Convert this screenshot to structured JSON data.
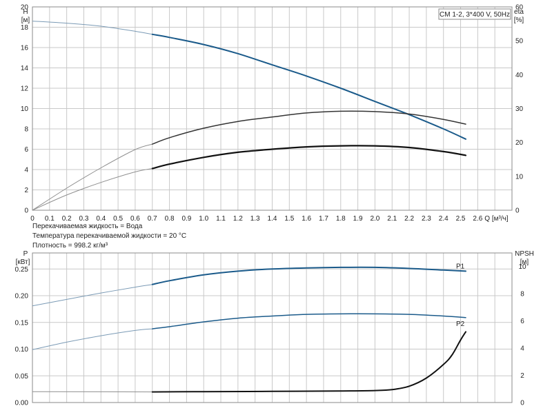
{
  "colors": {
    "grid": "#c8c8c8",
    "frame": "#8a8a8a",
    "head_curve": "#1a5a8a",
    "pump_curve": "#1a5a8a",
    "eta_curve": "#333333",
    "black_curve": "#111111",
    "thin_curve": "#8f8f8f"
  },
  "info": {
    "fluid": "Перекачиваемая жидкость = Вода",
    "temperature": "Температура перекачиваемой жидкости = 20 °C",
    "density": "Плотность = 998.2 кг/м³"
  },
  "chart_data": [
    {
      "type": "line",
      "title": "CM 1-2, 3*400 V, 50Hz",
      "x_axis": {
        "label": "Q [м³/ч]",
        "range": [
          0,
          2.8
        ],
        "ticks": [
          "0",
          "0.1",
          "0.2",
          "0.3",
          "0.4",
          "0.5",
          "0.6",
          "0.7",
          "0.8",
          "0.9",
          "1.0",
          "1.1",
          "1.2",
          "1.3",
          "1.4",
          "1.5",
          "1.6",
          "1.7",
          "1.8",
          "1.9",
          "2.0",
          "2.1",
          "2.2",
          "2.3",
          "2.4",
          "2.5",
          "2.6"
        ]
      },
      "y_axis_left": {
        "label": "H",
        "unit": "[м]",
        "range": [
          0,
          20
        ],
        "ticks": [
          "0",
          "2",
          "4",
          "6",
          "8",
          "10",
          "12",
          "14",
          "16",
          "18",
          "20"
        ]
      },
      "y_axis_right": {
        "label": "eta",
        "unit": "[%]",
        "range": [
          0,
          60
        ],
        "ticks": [
          "0",
          "10",
          "20",
          "30",
          "40",
          "50",
          "60"
        ]
      },
      "grid": true,
      "series": [
        {
          "axis": "left",
          "role": "head",
          "x": [
            0,
            0.2,
            0.4,
            0.6,
            0.7,
            0.8,
            1.0,
            1.2,
            1.4,
            1.6,
            1.8,
            2.0,
            2.2,
            2.4,
            2.53
          ],
          "y": [
            18.6,
            18.4,
            18.1,
            17.6,
            17.3,
            17.0,
            16.3,
            15.4,
            14.3,
            13.2,
            12.0,
            10.7,
            9.4,
            8.0,
            7.0
          ]
        },
        {
          "axis": "right",
          "role": "efficiency",
          "x": [
            0,
            0.2,
            0.4,
            0.6,
            0.7,
            0.8,
            1.0,
            1.2,
            1.4,
            1.6,
            1.8,
            2.0,
            2.2,
            2.4,
            2.53
          ],
          "y": [
            0,
            6.5,
            12.5,
            17.9,
            19.5,
            21.4,
            24.2,
            26.2,
            27.5,
            28.7,
            29.2,
            29.1,
            28.4,
            26.8,
            25.4
          ]
        },
        {
          "axis": "right",
          "role": "efficiency-2",
          "x": [
            0,
            0.2,
            0.4,
            0.6,
            0.7,
            0.8,
            1.0,
            1.2,
            1.4,
            1.6,
            1.8,
            2.0,
            2.2,
            2.4,
            2.53
          ],
          "y": [
            0,
            4.5,
            8.2,
            11.3,
            12.3,
            13.6,
            15.6,
            17.1,
            18.0,
            18.7,
            19.0,
            19.0,
            18.5,
            17.3,
            16.2
          ]
        }
      ]
    },
    {
      "type": "line",
      "x_axis": {
        "range": [
          0,
          2.8
        ]
      },
      "y_axis_left": {
        "label": "P",
        "unit": "[кВт]",
        "range": [
          0,
          0.28
        ],
        "ticks": [
          "0.00",
          "0.05",
          "0.10",
          "0.15",
          "0.20",
          "0.25"
        ]
      },
      "y_axis_right": {
        "label": "NPSH",
        "unit": "[м]",
        "range": [
          0,
          11
        ],
        "ticks": [
          "0",
          "2",
          "4",
          "6",
          "8",
          "10"
        ]
      },
      "grid": true,
      "series": [
        {
          "name": "P1",
          "axis": "left",
          "x": [
            0,
            0.2,
            0.4,
            0.6,
            0.7,
            0.8,
            1.0,
            1.2,
            1.4,
            1.6,
            1.8,
            2.0,
            2.2,
            2.4,
            2.53
          ],
          "y": [
            0.181,
            0.193,
            0.205,
            0.216,
            0.221,
            0.228,
            0.239,
            0.246,
            0.25,
            0.252,
            0.253,
            0.253,
            0.251,
            0.248,
            0.246
          ]
        },
        {
          "name": "P2",
          "axis": "left",
          "x": [
            0,
            0.2,
            0.4,
            0.6,
            0.7,
            0.8,
            1.0,
            1.2,
            1.4,
            1.6,
            1.8,
            2.0,
            2.2,
            2.4,
            2.53
          ],
          "y": [
            0.099,
            0.113,
            0.125,
            0.135,
            0.138,
            0.142,
            0.151,
            0.158,
            0.162,
            0.165,
            0.166,
            0.166,
            0.165,
            0.162,
            0.159
          ]
        },
        {
          "axis": "right",
          "role": "npsh",
          "x": [
            0,
            0.7,
            1.0,
            1.4,
            1.8,
            2.0,
            2.1,
            2.2,
            2.3,
            2.4,
            2.45,
            2.5,
            2.53
          ],
          "y": [
            0.8,
            0.78,
            0.8,
            0.82,
            0.85,
            0.88,
            0.95,
            1.2,
            1.8,
            2.8,
            3.5,
            4.6,
            5.2
          ]
        }
      ]
    }
  ]
}
